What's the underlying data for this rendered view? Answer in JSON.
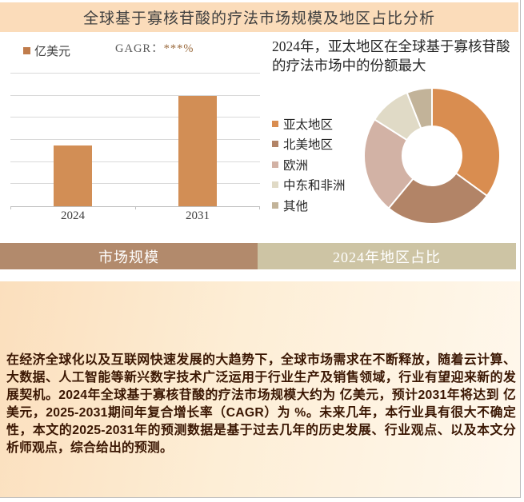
{
  "page": {
    "title": "全球基于寡核苷酸的疗法市场规模及地区占比分析"
  },
  "bar_chart_ui": {
    "legend_label": "亿美元",
    "cagr_prefix": "GAGR：",
    "cagr_value": "***%"
  },
  "donut_ui": {
    "heading": "2024年，亚太地区在全球基于寡核苷酸的疗法市场中的份额最大"
  },
  "tabs": [
    {
      "label": "市场规模"
    },
    {
      "label": "2024年地区占比"
    }
  ],
  "summary": {
    "text": "在经济全球化以及互联网快速发展的大趋势下，全球市场需求在不断释放，随着云计算、大数据、人工智能等新兴数字技术广泛运用于行业生产及销售领域，行业有望迎来新的发展契机。2024年全球基于寡核苷酸的疗法市场规模大约为 亿美元，预计2031年将达到 亿美元，2025-2031期间年复合增长率（CAGR）为 %。未来几年，本行业具有很大不确定性，本文的2025-2031年的预测数据是基于过去几年的历史发展、行业观点、以及本文分析师观点，综合给出的预测。"
  },
  "chart_data": [
    {
      "type": "bar",
      "title": "市场规模",
      "categories": [
        "2024",
        "2031"
      ],
      "values": [
        2.75,
        5
      ],
      "ylabel": "亿美元",
      "ylim": [
        0,
        6.25
      ],
      "gridlines": 6,
      "grid": true,
      "bar_color": "#d28e55",
      "annotations": [
        "GAGR：***%"
      ]
    },
    {
      "type": "pie",
      "subtype": "donut",
      "title": "2024年地区占比",
      "categories": [
        "亚太地区",
        "北美地区",
        "欧洲",
        "中东和非洲",
        "其他"
      ],
      "values": [
        35,
        26,
        23,
        10,
        6
      ],
      "colors": [
        "#d98d50",
        "#b28467",
        "#d2b2a5",
        "#e0dac6",
        "#c2b399"
      ],
      "legend_position": "left"
    }
  ],
  "colors": {
    "title_bar_bg": "#fbdcba",
    "bar_orange": "#d28e55",
    "tab_left_bg": "#b28a6c",
    "tab_right_bg": "#cdc4a4",
    "summary_text": "#3a1602",
    "gridline": "#d9d9d9"
  }
}
